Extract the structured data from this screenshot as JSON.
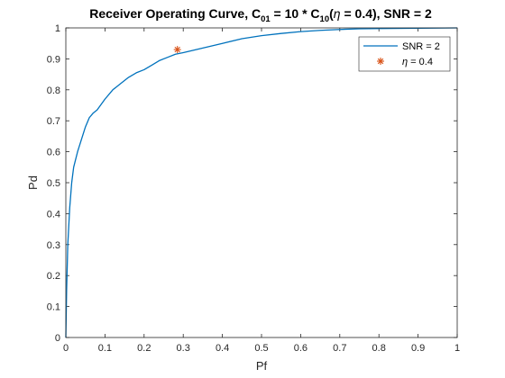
{
  "chart_data": {
    "type": "line",
    "title": {
      "main_a": "Receiver Operating Curve, C",
      "sub_a": "01",
      "main_b": " = 10 * C",
      "sub_b": "10",
      "main_c": "(",
      "eta": "η",
      "main_d": " = 0.4), SNR = 2"
    },
    "xlabel": "Pf",
    "ylabel": "Pd",
    "xlim": [
      0,
      1
    ],
    "ylim": [
      0,
      1
    ],
    "xticks": [
      "0",
      "0.1",
      "0.2",
      "0.3",
      "0.4",
      "0.5",
      "0.6",
      "0.7",
      "0.8",
      "0.9",
      "1"
    ],
    "yticks": [
      "0",
      "0.1",
      "0.2",
      "0.3",
      "0.4",
      "0.5",
      "0.6",
      "0.7",
      "0.8",
      "0.9",
      "1"
    ],
    "grid": false,
    "legend_position": "top-right",
    "series": [
      {
        "name": "SNR = 2",
        "color": "#0072BD",
        "points": [
          [
            0,
            0
          ],
          [
            0.002,
            0.15
          ],
          [
            0.005,
            0.3
          ],
          [
            0.01,
            0.42
          ],
          [
            0.015,
            0.5
          ],
          [
            0.02,
            0.55
          ],
          [
            0.03,
            0.6
          ],
          [
            0.04,
            0.64
          ],
          [
            0.05,
            0.68
          ],
          [
            0.06,
            0.71
          ],
          [
            0.07,
            0.725
          ],
          [
            0.08,
            0.735
          ],
          [
            0.1,
            0.77
          ],
          [
            0.12,
            0.8
          ],
          [
            0.14,
            0.82
          ],
          [
            0.16,
            0.84
          ],
          [
            0.18,
            0.855
          ],
          [
            0.2,
            0.865
          ],
          [
            0.22,
            0.88
          ],
          [
            0.24,
            0.895
          ],
          [
            0.26,
            0.905
          ],
          [
            0.28,
            0.915
          ],
          [
            0.3,
            0.92
          ],
          [
            0.35,
            0.935
          ],
          [
            0.4,
            0.95
          ],
          [
            0.45,
            0.965
          ],
          [
            0.5,
            0.975
          ],
          [
            0.55,
            0.982
          ],
          [
            0.6,
            0.988
          ],
          [
            0.65,
            0.992
          ],
          [
            0.7,
            0.995
          ],
          [
            0.75,
            0.997
          ],
          [
            0.8,
            0.998
          ],
          [
            0.9,
            0.999
          ],
          [
            1,
            1
          ]
        ]
      }
    ],
    "marker": {
      "label_symbol": "η",
      "label_rest": " = 0.4",
      "color": "#D95319",
      "x": 0.285,
      "y": 0.93
    }
  }
}
